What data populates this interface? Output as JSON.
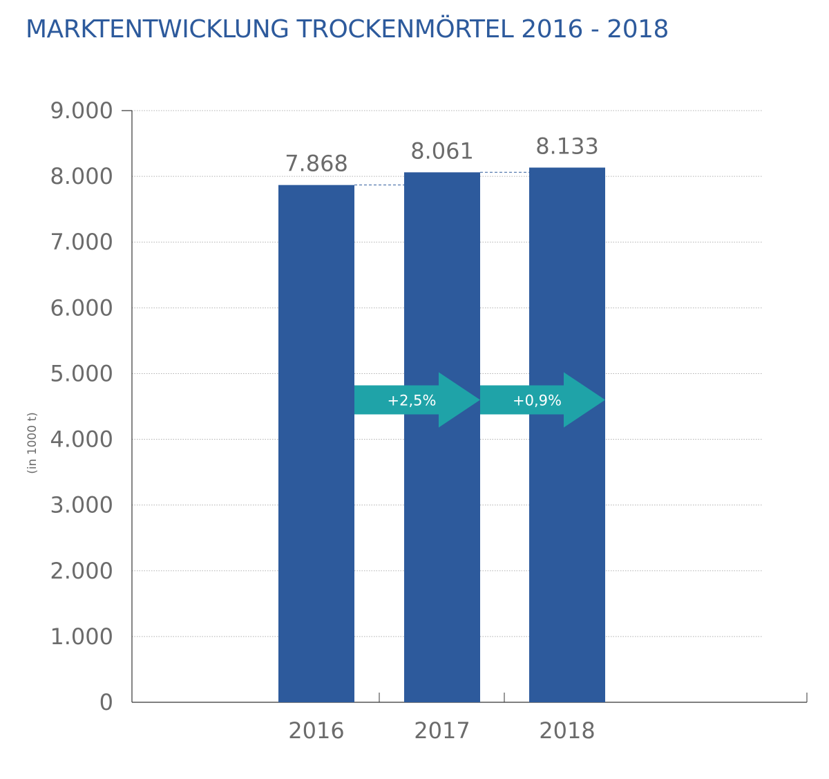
{
  "title": "MARKTENTWICKLUNG TROCKENMÖRTEL 2016 - 2018",
  "chart_data": {
    "type": "bar",
    "categories": [
      "2016",
      "2017",
      "2018"
    ],
    "values": [
      7868,
      8061,
      8133
    ],
    "value_labels": [
      "7.868",
      "8.061",
      "8.133"
    ],
    "ylabel": "(in 1000 t)",
    "xlabel": "",
    "ylim": [
      0,
      9000
    ],
    "yticks": [
      0,
      1000,
      2000,
      3000,
      4000,
      5000,
      6000,
      7000,
      8000,
      9000
    ],
    "ytick_labels": [
      "0",
      "1.000",
      "2.000",
      "3.000",
      "4.000",
      "5.000",
      "6.000",
      "7.000",
      "8.000",
      "9.000"
    ],
    "grid": true,
    "colors": {
      "bar": "#2d5a9c",
      "arrow": "#1fa3a8",
      "grid": "#b0b0b0",
      "axis": "#333333"
    },
    "annotations": [
      {
        "type": "growth-arrow",
        "from": "2016",
        "to": "2017",
        "label": "+2,5%",
        "at_value": 4600
      },
      {
        "type": "growth-arrow",
        "from": "2017",
        "to": "2018",
        "label": "+0,9%",
        "at_value": 4600
      }
    ]
  }
}
